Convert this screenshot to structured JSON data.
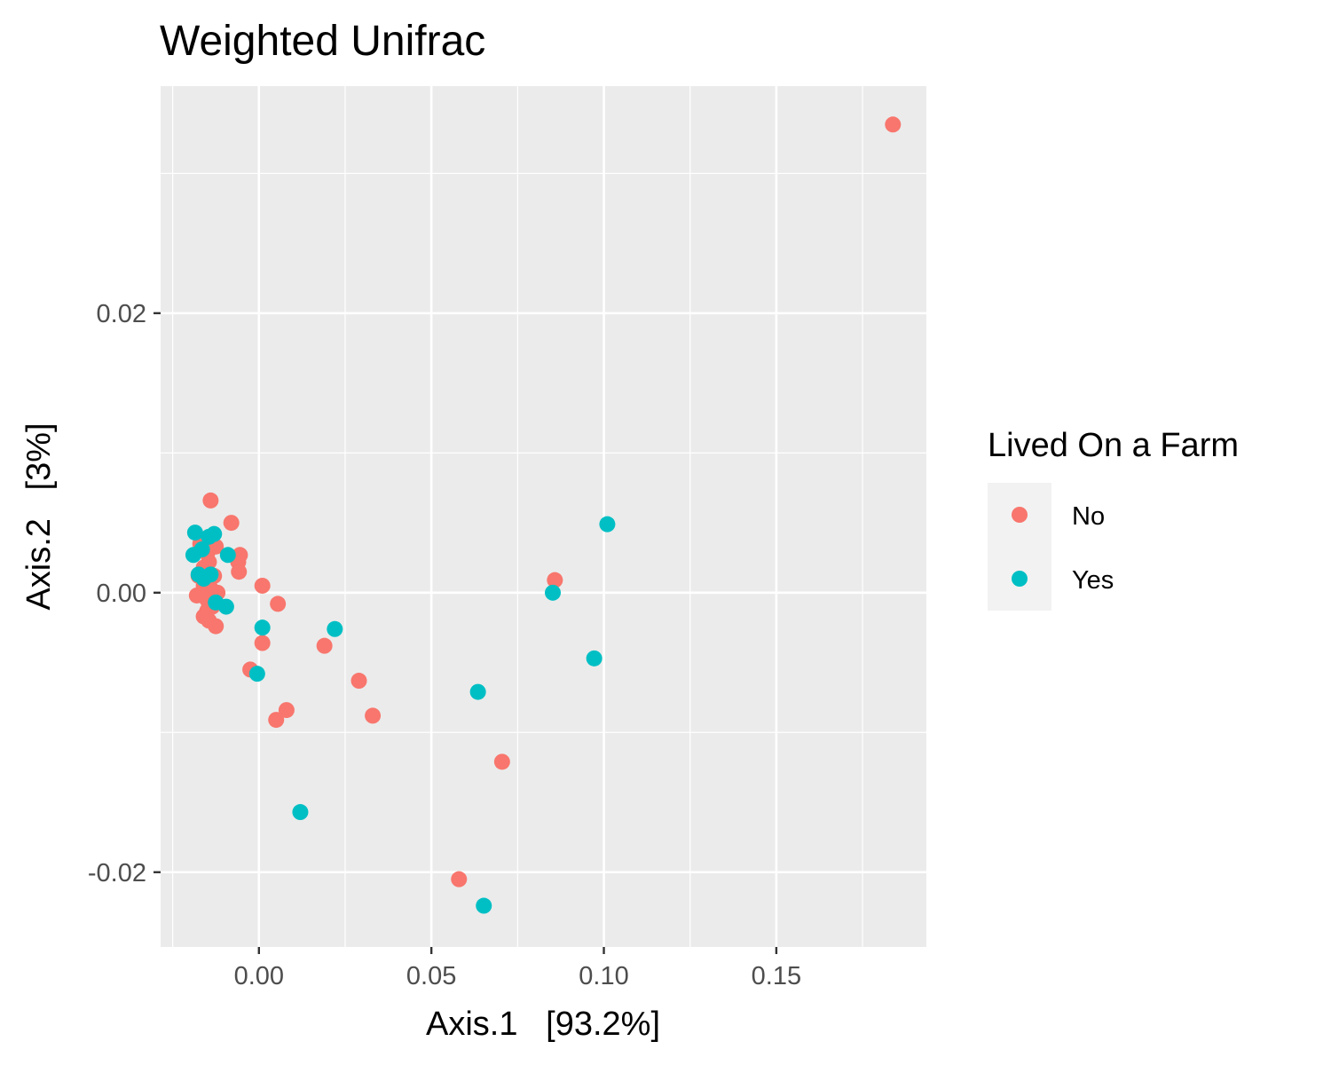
{
  "chart_data": {
    "type": "scatter",
    "title": "Weighted Unifrac",
    "xlabel": "Axis.1   [93.2%]",
    "ylabel": "Axis.2   [3%]",
    "xlim": [
      -0.0285,
      0.1935
    ],
    "ylim": [
      -0.02535,
      0.03625
    ],
    "x_ticks": [
      0.0,
      0.05,
      0.1,
      0.15
    ],
    "x_tick_labels": [
      "0.00",
      "0.05",
      "0.10",
      "0.15"
    ],
    "y_ticks": [
      -0.02,
      0.0,
      0.02
    ],
    "y_tick_labels": [
      "-0.02",
      "0.00",
      "0.02"
    ],
    "grid": true,
    "legend": {
      "title": "Lived On a Farm",
      "position": "right"
    },
    "series": [
      {
        "name": "No",
        "color": "#F8766D",
        "points": [
          [
            0.1838,
            0.0335
          ],
          [
            -0.014,
            0.0066
          ],
          [
            -0.008,
            0.005
          ],
          [
            -0.0055,
            0.0027
          ],
          [
            -0.006,
            0.0022
          ],
          [
            -0.0058,
            0.0015
          ],
          [
            -0.0125,
            0.0033
          ],
          [
            -0.015,
            0.0028
          ],
          [
            -0.017,
            0.0035
          ],
          [
            -0.0145,
            0.0022
          ],
          [
            -0.016,
            0.0018
          ],
          [
            -0.0175,
            0.0012
          ],
          [
            -0.013,
            0.0012
          ],
          [
            -0.015,
            0.001
          ],
          [
            -0.016,
            0.0005
          ],
          [
            -0.014,
            0.0003
          ],
          [
            -0.012,
            0.0
          ],
          [
            -0.018,
            -0.0002
          ],
          [
            -0.015,
            -0.0005
          ],
          [
            -0.0135,
            -0.001
          ],
          [
            -0.015,
            -0.0013
          ],
          [
            -0.016,
            -0.0017
          ],
          [
            -0.0145,
            -0.002
          ],
          [
            -0.0125,
            -0.0024
          ],
          [
            0.001,
            0.0005
          ],
          [
            0.0055,
            -0.0008
          ],
          [
            0.001,
            -0.0036
          ],
          [
            -0.0025,
            -0.0055
          ],
          [
            0.019,
            -0.0038
          ],
          [
            0.029,
            -0.0063
          ],
          [
            0.033,
            -0.0088
          ],
          [
            0.008,
            -0.0084
          ],
          [
            0.005,
            -0.0091
          ],
          [
            0.0705,
            -0.0121
          ],
          [
            0.058,
            -0.0205
          ],
          [
            0.0858,
            0.0009
          ]
        ]
      },
      {
        "name": "Yes",
        "color": "#00BFC4",
        "points": [
          [
            -0.0185,
            0.0043
          ],
          [
            -0.013,
            0.0042
          ],
          [
            -0.0145,
            0.004
          ],
          [
            -0.0165,
            0.0031
          ],
          [
            -0.019,
            0.0027
          ],
          [
            -0.009,
            0.0027
          ],
          [
            -0.0175,
            0.0013
          ],
          [
            -0.014,
            0.0013
          ],
          [
            -0.016,
            0.001
          ],
          [
            -0.0125,
            -0.0007
          ],
          [
            -0.0095,
            -0.001
          ],
          [
            0.001,
            -0.0025
          ],
          [
            -0.0005,
            -0.0058
          ],
          [
            0.022,
            -0.0026
          ],
          [
            0.0635,
            -0.0071
          ],
          [
            0.0852,
            0.0
          ],
          [
            0.0972,
            -0.0047
          ],
          [
            0.101,
            0.0049
          ],
          [
            0.012,
            -0.0157
          ],
          [
            0.0652,
            -0.0224
          ]
        ]
      }
    ]
  }
}
